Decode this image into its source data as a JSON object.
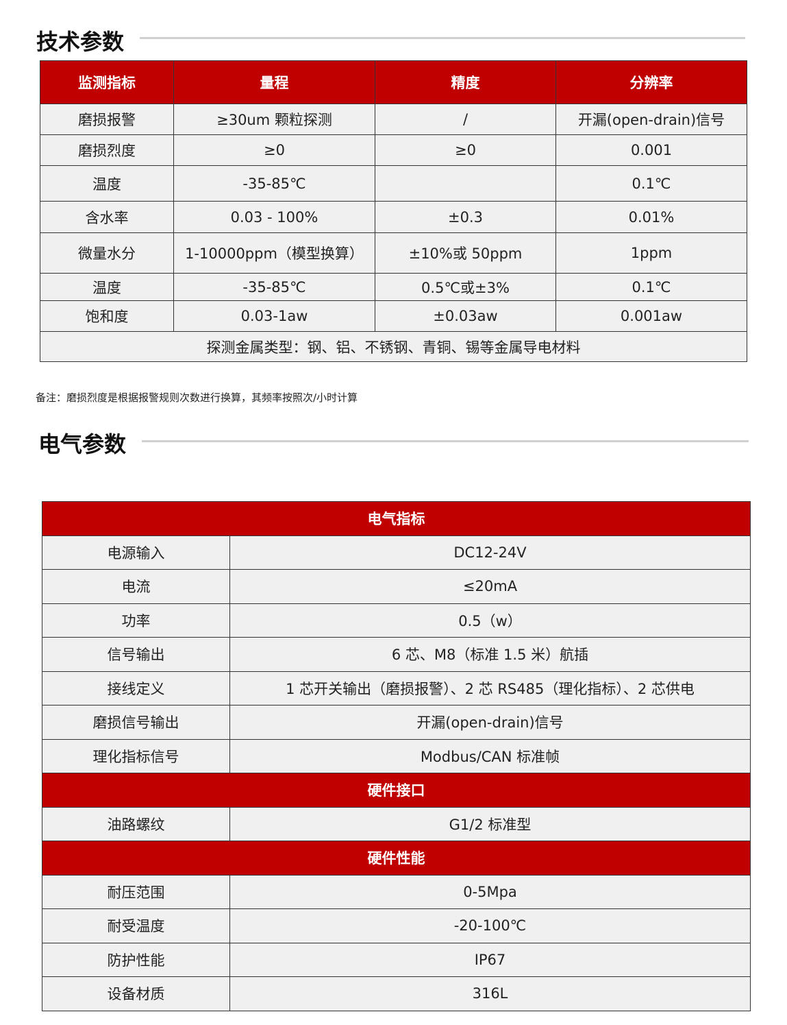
{
  "tech": {
    "title": "技术参数",
    "headers": [
      "监测指标",
      "量程",
      "精度",
      "分辨率"
    ],
    "rows": [
      [
        "磨损报警",
        "≥30um 颗粒探测",
        "/",
        "开漏(open-drain)信号"
      ],
      [
        "磨损烈度",
        "≥0",
        "≥0",
        "0.001"
      ],
      [
        "温度",
        "-35-85℃",
        "",
        "0.1℃"
      ],
      [
        "含水率",
        "0.03 - 100%",
        "±0.3",
        "0.01%"
      ],
      [
        "微量水分",
        "1-10000ppm（模型换算）",
        "±10%或 50ppm",
        "1ppm"
      ],
      [
        "温度",
        "-35-85℃",
        "0.5℃或±3%",
        "0.1℃"
      ],
      [
        "饱和度",
        "0.03-1aw",
        "±0.03aw",
        "0.001aw"
      ]
    ],
    "footer": "探测金属类型：钢、铝、不锈钢、青铜、锡等金属导电材料",
    "note": "备注：磨损烈度是根据报警规则次数进行换算，其频率按照次/小时计算"
  },
  "elec": {
    "title": "电气参数",
    "sections": [
      {
        "header": "电气指标",
        "rows": [
          [
            "电源输入",
            "DC12-24V"
          ],
          [
            "电流",
            "≤20mA"
          ],
          [
            "功率",
            "0.5（w）"
          ],
          [
            "信号输出",
            "6 芯、M8（标准 1.5 米）航插"
          ],
          [
            "接线定义",
            "1 芯开关输出（磨损报警）、2 芯 RS485（理化指标）、2 芯供电"
          ],
          [
            "磨损信号输出",
            "开漏(open-drain)信号"
          ],
          [
            "理化指标信号",
            "Modbus/CAN 标准帧"
          ]
        ]
      },
      {
        "header": "硬件接口",
        "rows": [
          [
            "油路螺纹",
            "G1/2  标准型"
          ]
        ]
      },
      {
        "header": "硬件性能",
        "rows": [
          [
            "耐压范围",
            "0-5Mpa"
          ],
          [
            "耐受温度",
            "-20-100℃"
          ],
          [
            "防护性能",
            "IP67"
          ],
          [
            "设备材质",
            "316L"
          ]
        ]
      }
    ]
  },
  "colors": {
    "header_red": "#c00000",
    "row_gray": "#f0f0f0"
  }
}
